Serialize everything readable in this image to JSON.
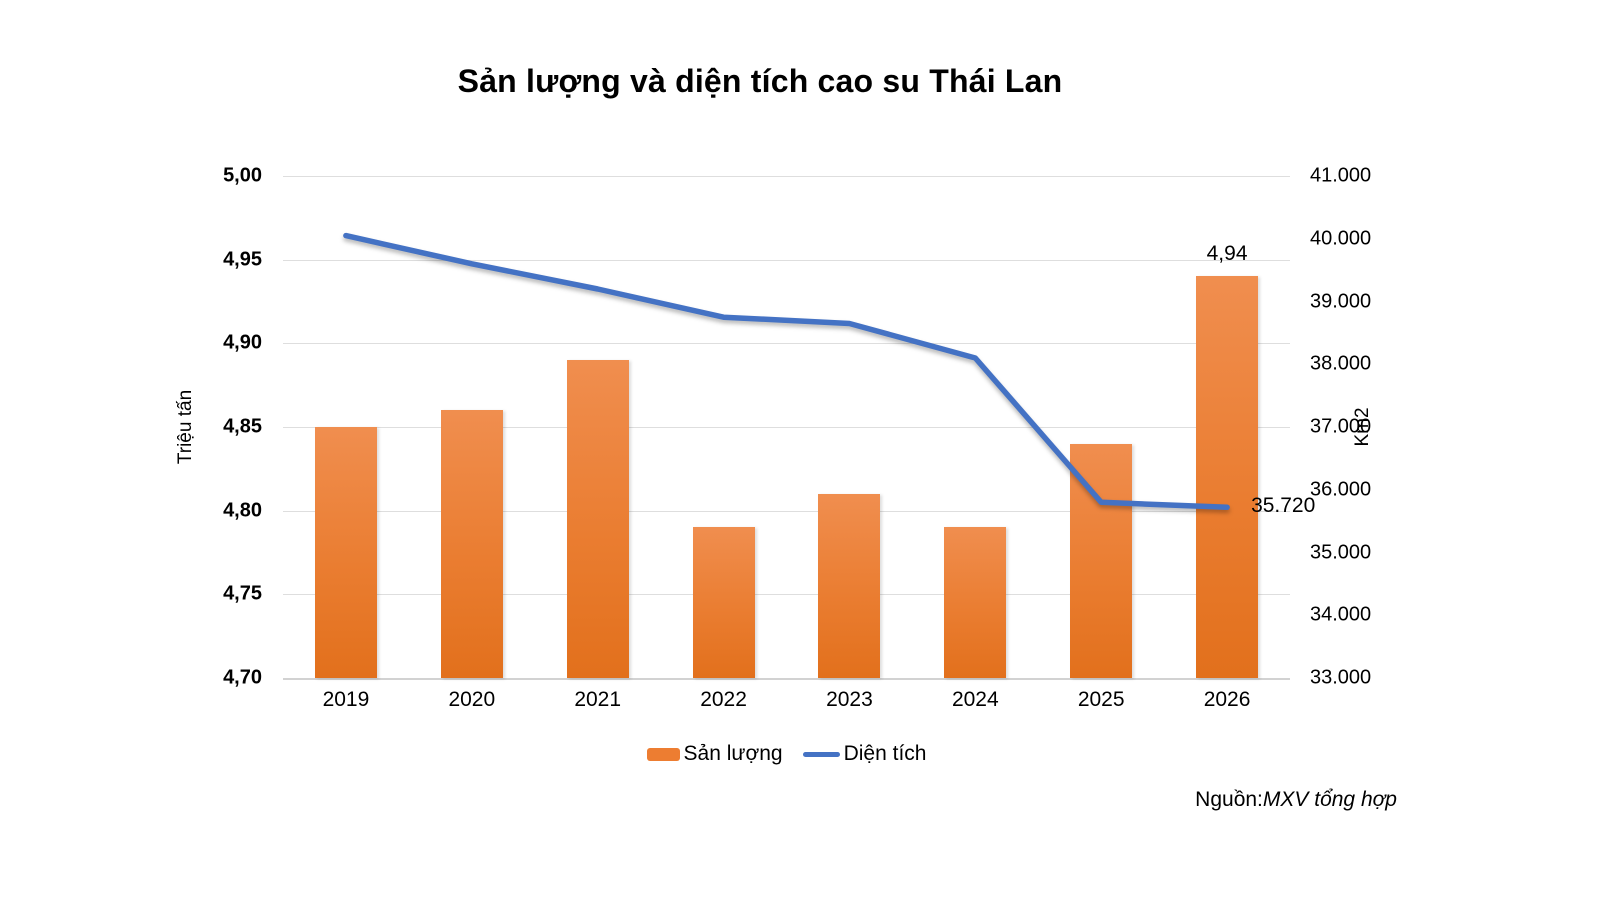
{
  "title": "Sản lượng và diện tích cao su Thái Lan",
  "source": {
    "prefix": "Nguồn:",
    "text": "MXV tổng hợp"
  },
  "legend": {
    "production_label": "Sản lượng",
    "area_label": "Diện tích"
  },
  "colors": {
    "bar_gradient_top": "#f08e4f",
    "bar_gradient_bottom": "#e2701c",
    "bar_legend": "#ed7d31",
    "line": "#4472c4",
    "gridline": "#dedede",
    "text": "#000000"
  },
  "chart_data": {
    "type": "combo",
    "title": "Sản lượng và diện tích cao su Thái Lan",
    "categories": [
      "2019",
      "2020",
      "2021",
      "2022",
      "2023",
      "2024",
      "2025",
      "2026"
    ],
    "series": [
      {
        "name": "Sản lượng",
        "type": "bar",
        "axis": "left",
        "unit": "Triệu tấn",
        "color": "#ed7d31",
        "values": [
          4.85,
          4.86,
          4.89,
          4.79,
          4.81,
          4.79,
          4.84,
          4.94
        ]
      },
      {
        "name": "Diện tích",
        "type": "line",
        "axis": "right",
        "unit": "Km2",
        "color": "#4472c4",
        "values": [
          40050,
          39600,
          39200,
          38750,
          38650,
          38100,
          35800,
          35720
        ]
      }
    ],
    "left_axis": {
      "label": "Triệu tấn",
      "min": 4.7,
      "max": 5.0,
      "tick_step": 0.05,
      "ticks": [
        "5,00",
        "4,95",
        "4,90",
        "4,85",
        "4,80",
        "4,75",
        "4,70"
      ]
    },
    "right_axis": {
      "label": "Km2",
      "min": 33000,
      "max": 41000,
      "tick_step": 1000,
      "ticks": [
        "41.000",
        "40.000",
        "39.000",
        "38.000",
        "37.000",
        "36.000",
        "35.000",
        "34.000",
        "33.000"
      ]
    },
    "annotations": [
      {
        "type": "bar-label",
        "series": "Sản lượng",
        "category": "2026",
        "index": 7,
        "text": "4,94"
      },
      {
        "type": "line-label",
        "series": "Diện tích",
        "category": "2026",
        "index": 7,
        "text": "35.720"
      }
    ],
    "grid": true,
    "legend_position": "bottom"
  }
}
